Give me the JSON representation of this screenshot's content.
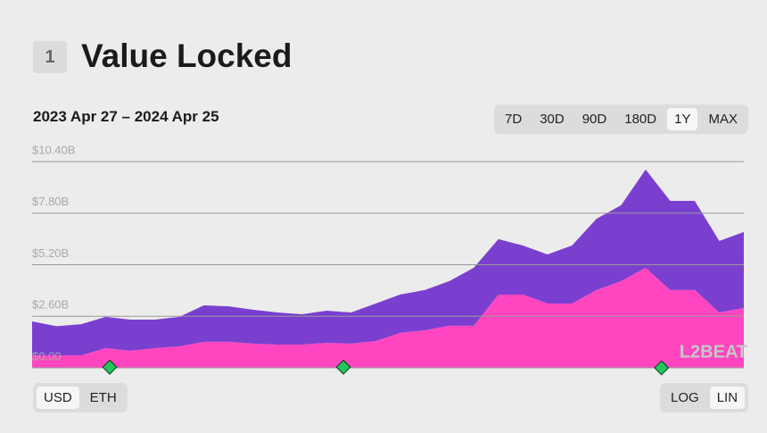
{
  "header": {
    "badge": "1",
    "title": "Value Locked"
  },
  "range_label": "2023 Apr 27 – 2024 Apr 25",
  "range_buttons": [
    "7D",
    "30D",
    "90D",
    "180D",
    "1Y",
    "MAX"
  ],
  "selected_range": "1Y",
  "unit_buttons": [
    "USD",
    "ETH"
  ],
  "selected_unit": "USD",
  "scale_buttons": [
    "LOG",
    "LIN"
  ],
  "selected_scale": "LIN",
  "chart_data": {
    "type": "area",
    "stacked": true,
    "ylim": [
      0,
      10.4
    ],
    "yticks": [
      {
        "value": 0,
        "label": "$0.00"
      },
      {
        "value": 2.6,
        "label": "$2.60B"
      },
      {
        "value": 5.2,
        "label": "$5.20B"
      },
      {
        "value": 7.8,
        "label": "$7.80B"
      },
      {
        "value": 10.4,
        "label": "$10.40B"
      }
    ],
    "grid": true,
    "watermark": "L2BEAT",
    "series": [
      {
        "color": "#ff46c0",
        "values": [
          0.63,
          0.63,
          0.63,
          0.99,
          0.86,
          0.99,
          1.08,
          1.31,
          1.31,
          1.22,
          1.17,
          1.17,
          1.26,
          1.22,
          1.35,
          1.76,
          1.89,
          2.12,
          2.12,
          3.69,
          3.69,
          3.24,
          3.24,
          3.92,
          4.37,
          5.05,
          3.92,
          3.92,
          2.79,
          3.02
        ]
      },
      {
        "color": "#7b3fd0",
        "values": [
          1.71,
          1.47,
          1.57,
          1.58,
          1.57,
          1.44,
          1.49,
          1.84,
          1.79,
          1.71,
          1.62,
          1.53,
          1.62,
          1.57,
          1.89,
          1.94,
          2.03,
          2.25,
          2.93,
          2.8,
          2.48,
          2.48,
          2.93,
          3.6,
          3.83,
          4.95,
          4.5,
          4.5,
          3.61,
          3.83
        ]
      }
    ]
  }
}
